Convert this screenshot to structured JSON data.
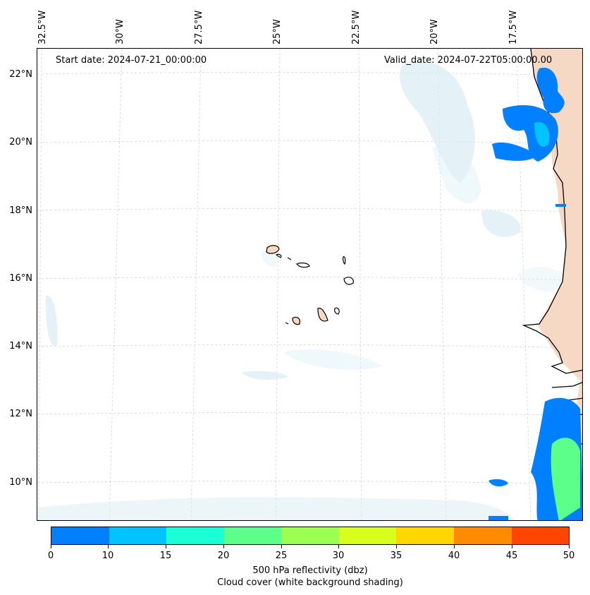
{
  "map": {
    "start_date": "Start date: 2024-07-21_00:00:00",
    "valid_date": "Valid_date: 2024-07-22T05:00:00.00",
    "longitude_labels": [
      "32.5°W",
      "30°W",
      "27.5°W",
      "25°W",
      "22.5°W",
      "20°W",
      "17.5°W"
    ],
    "latitude_labels": [
      "22°N",
      "20°N",
      "18°N",
      "16°N",
      "14°N",
      "12°N",
      "10°N"
    ],
    "colors": {
      "coastline": "#000000",
      "gridline": "#cccccc",
      "land": "#f6d9c4",
      "cloud_shading": "#d8edf4",
      "reflectivity_low": "#0080ff",
      "reflectivity_mid": "#00c4ff",
      "reflectivity_high": "#5cff8a"
    }
  },
  "colorbar": {
    "ticks": [
      "0",
      "10",
      "15",
      "20",
      "25",
      "30",
      "35",
      "40",
      "45",
      "50"
    ],
    "colors": [
      "#0080ff",
      "#00c4ff",
      "#1affd5",
      "#5cff8a",
      "#9cff52",
      "#d8ff1e",
      "#ffd700",
      "#ff8c00",
      "#ff4500"
    ],
    "title_line1": "500 hPa reflectivity (dbz)",
    "title_line2": "Cloud cover (white background shading)"
  }
}
